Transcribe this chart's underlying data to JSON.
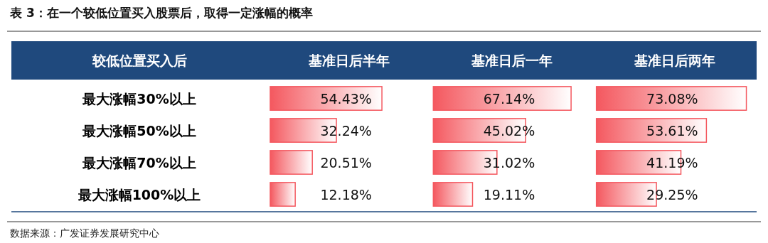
{
  "chart_data": [
    {
      "type": "bar",
      "orientation": "horizontal",
      "title": "表 3：在一个较低位置买入股票后，取得一定涨幅的概率",
      "ylabel": "较低位置买入后",
      "subtitle": "基准日后半年",
      "categories": [
        "最大涨幅30%以上",
        "最大涨幅50%以上",
        "最大涨幅70%以上",
        "最大涨幅100%以上"
      ],
      "values": [
        54.43,
        32.24,
        20.51,
        12.18
      ],
      "value_labels": [
        "54.43%",
        "32.24%",
        "20.51%",
        "12.18%"
      ],
      "color": "#f4585f",
      "tick_labels": "y",
      "annotations": [
        "数据来源：广发证券发展研究中心"
      ]
    },
    {
      "type": "bar",
      "orientation": "horizontal",
      "subtitle": "基准日后一年",
      "values": [
        67.14,
        45.02,
        31.02,
        19.11
      ],
      "value_labels": [
        "67.14%",
        "45.02%",
        "31.02%",
        "19.11%"
      ],
      "color": "#f4585f",
      "tick_labels": false
    },
    {
      "type": "bar",
      "orientation": "horizontal",
      "subtitle": "基准日后两年",
      "values": [
        73.08,
        53.61,
        41.19,
        29.25
      ],
      "value_labels": [
        "73.08%",
        "53.61%",
        "41.19%",
        "29.25%"
      ],
      "color": "#f4585f",
      "tick_labels": false
    }
  ]
}
